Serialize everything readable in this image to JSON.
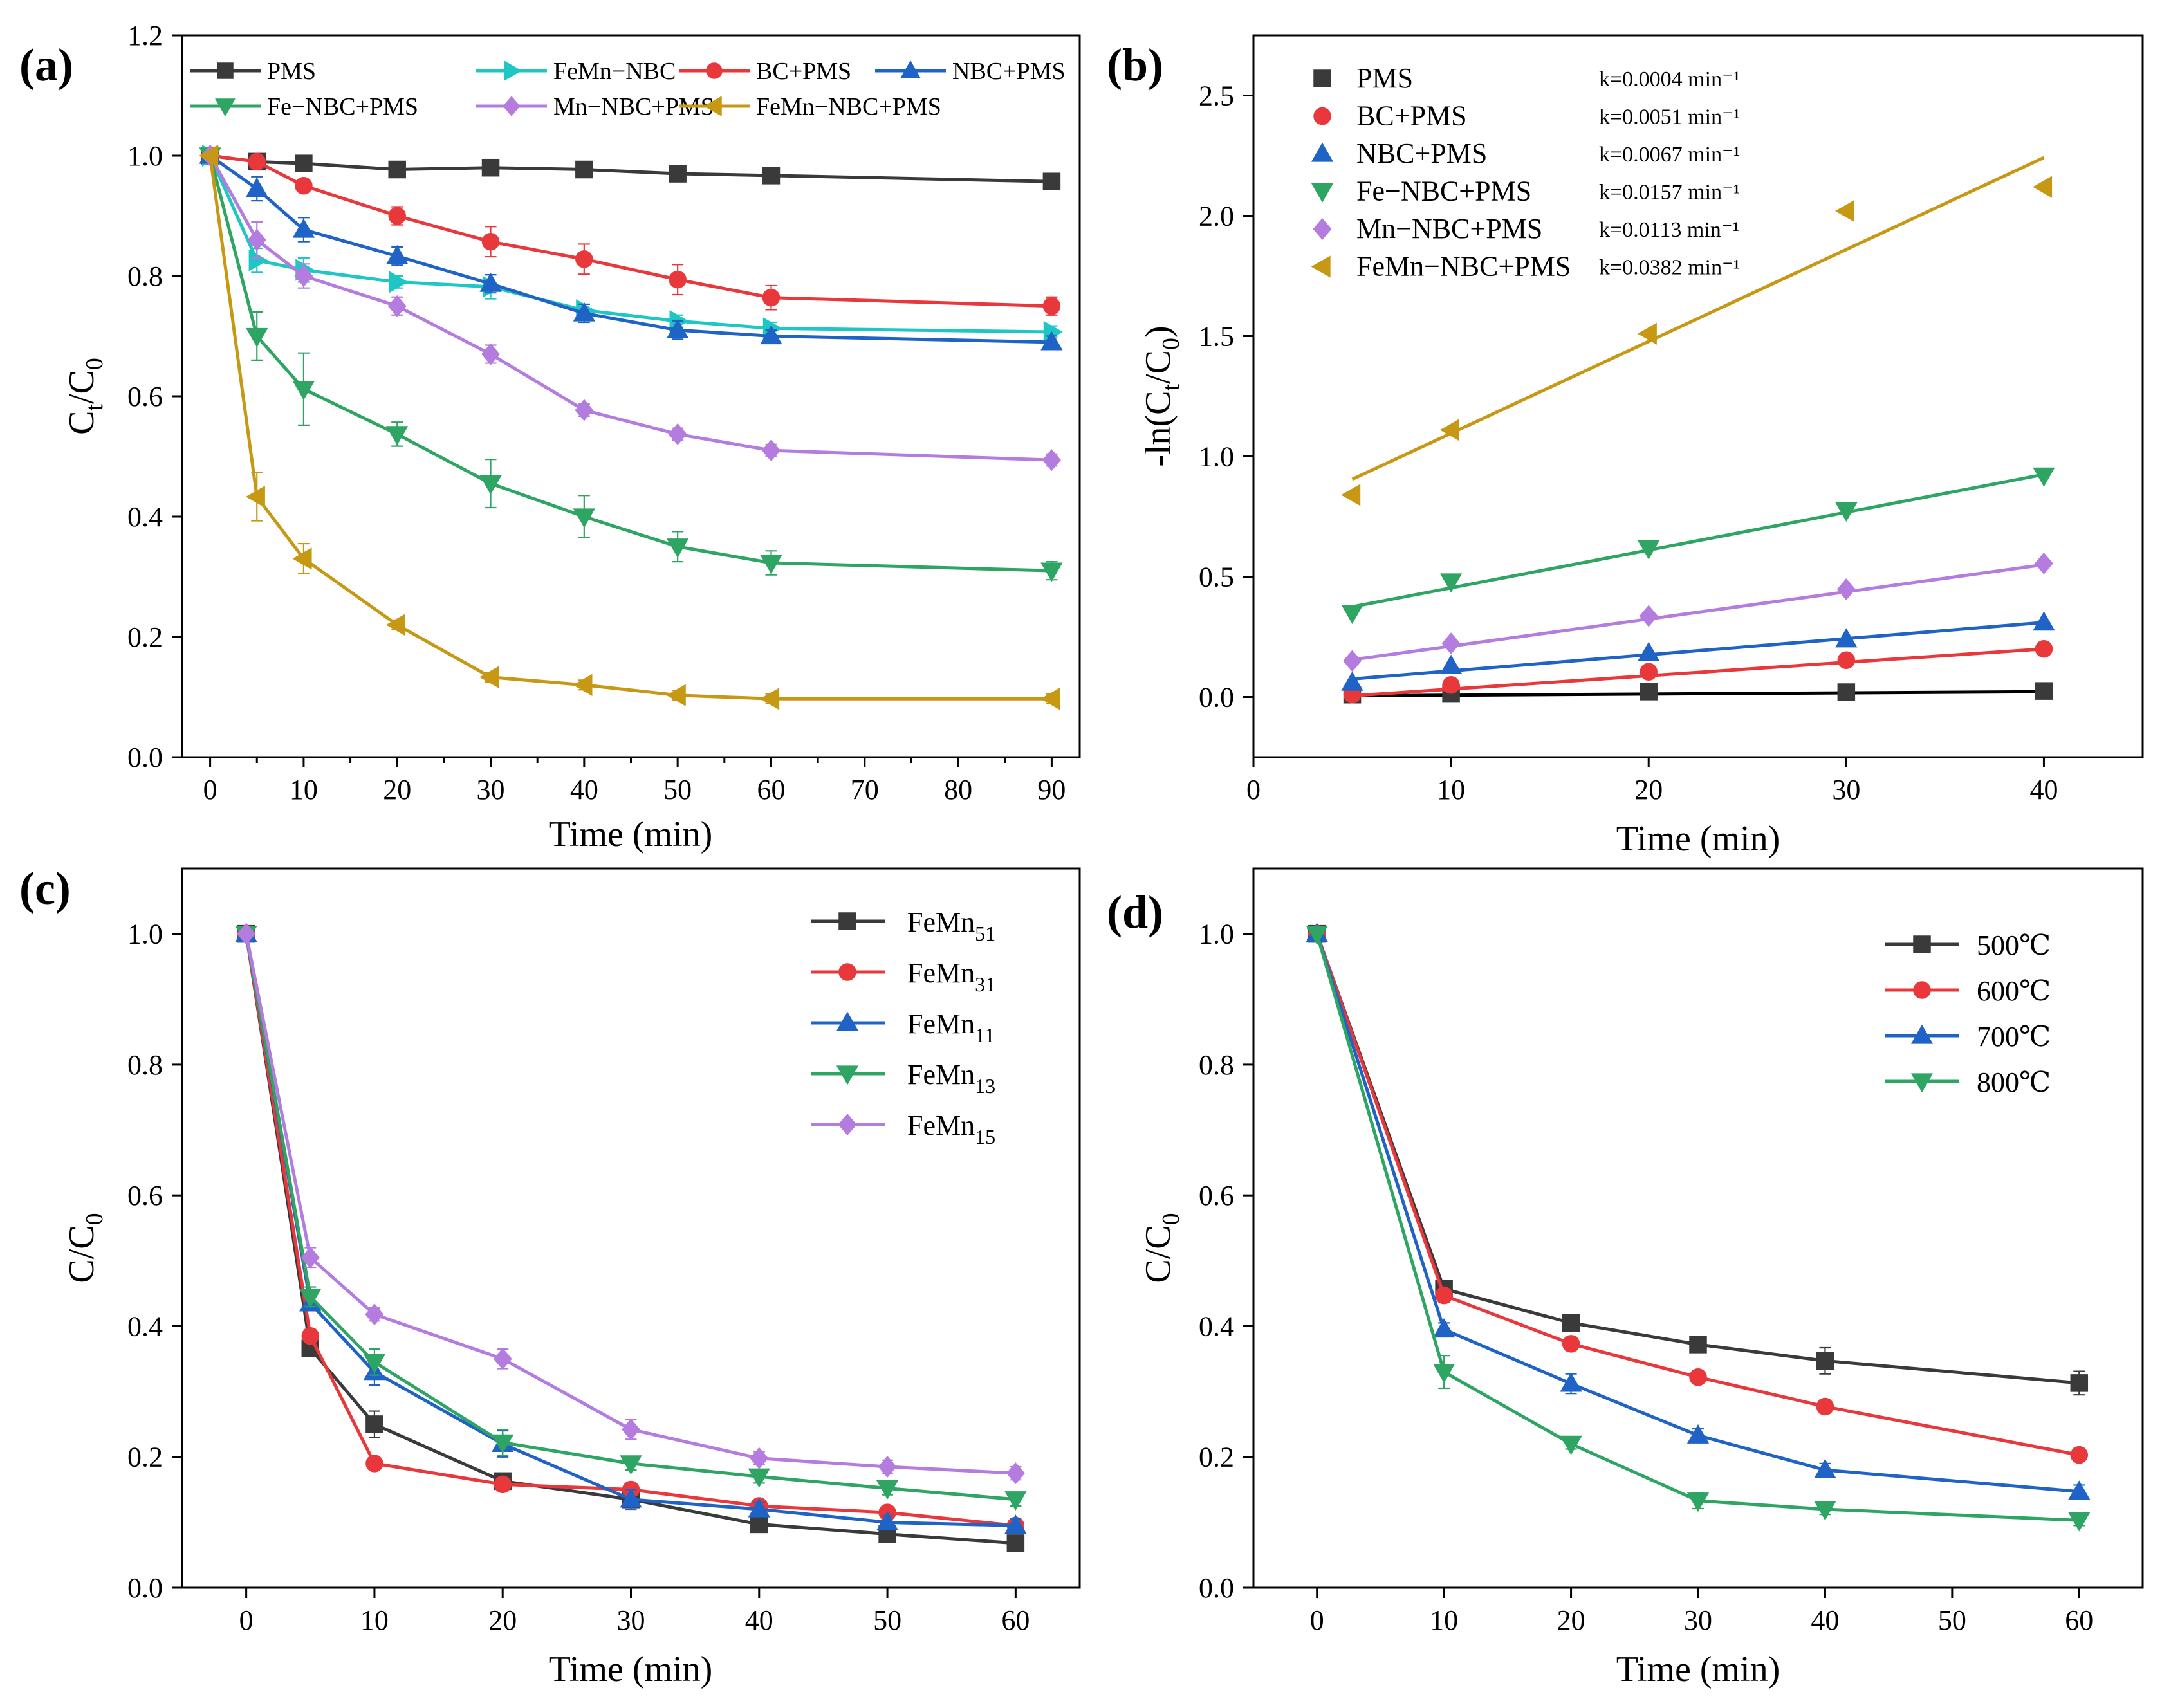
{
  "panels": {
    "a": {
      "label": "(a)",
      "xlabel": "Time (min)",
      "ylabel": [
        "C",
        "t",
        "/C",
        "0"
      ],
      "xticks": [
        "0",
        "10",
        "20",
        "30",
        "40",
        "50",
        "60",
        "70",
        "80",
        "90"
      ],
      "yticks": [
        "0.0",
        "0.2",
        "0.4",
        "0.6",
        "0.8",
        "1.0",
        "1.2"
      ]
    },
    "b": {
      "label": "(b)",
      "xlabel": "Time (min)",
      "ylabel": [
        "-ln(C",
        "t",
        "/C",
        "0",
        ")"
      ],
      "xticks": [
        "0",
        "10",
        "20",
        "30",
        "40"
      ],
      "yticks": [
        "0.0",
        "0.5",
        "1.0",
        "1.5",
        "2.0",
        "2.5"
      ]
    },
    "c": {
      "label": "(c)",
      "xlabel": "Time (min)",
      "ylabel": [
        "C/C",
        "0"
      ],
      "xticks": [
        "0",
        "10",
        "20",
        "30",
        "40",
        "50",
        "60"
      ],
      "yticks": [
        "0.0",
        "0.2",
        "0.4",
        "0.6",
        "0.8",
        "1.0"
      ]
    },
    "d": {
      "label": "(d)",
      "xlabel": "Time (min)",
      "ylabel": [
        "C/C",
        "0"
      ],
      "xticks": [
        "0",
        "10",
        "20",
        "30",
        "40",
        "50",
        "60"
      ],
      "yticks": [
        "0.0",
        "0.2",
        "0.4",
        "0.6",
        "0.8",
        "1.0"
      ]
    }
  },
  "chart_data": [
    {
      "panel": "a",
      "type": "line",
      "title": "",
      "xlabel": "Time (min)",
      "ylabel": "Ct/C0",
      "xlim": [
        -3,
        93
      ],
      "ylim": [
        0,
        1.2
      ],
      "legend_position": "top",
      "series": [
        {
          "name": "PMS",
          "color": "#3a3a3a",
          "marker": "square",
          "x": [
            0,
            5,
            10,
            20,
            30,
            40,
            50,
            60,
            90
          ],
          "y": [
            1.0,
            0.99,
            0.987,
            0.977,
            0.98,
            0.977,
            0.97,
            0.967,
            0.957
          ],
          "err": [
            0,
            0,
            0,
            0.005,
            0,
            0,
            0,
            0,
            0
          ]
        },
        {
          "name": "FeMn−NBC",
          "color": "#1fc7c4",
          "marker": "triangle-right",
          "x": [
            0,
            5,
            10,
            20,
            30,
            40,
            50,
            60,
            90
          ],
          "y": [
            1.0,
            0.826,
            0.81,
            0.79,
            0.782,
            0.743,
            0.725,
            0.713,
            0.707
          ],
          "err": [
            0,
            0.02,
            0.02,
            0.01,
            0.02,
            0.01,
            0.01,
            0.01,
            0.01
          ]
        },
        {
          "name": "BC+PMS",
          "color": "#e8383b",
          "marker": "circle",
          "x": [
            0,
            5,
            10,
            20,
            30,
            40,
            50,
            60,
            90
          ],
          "y": [
            1.0,
            0.99,
            0.95,
            0.9,
            0.857,
            0.828,
            0.794,
            0.764,
            0.75
          ],
          "err": [
            0,
            0.005,
            0.01,
            0.015,
            0.025,
            0.025,
            0.025,
            0.02,
            0.015
          ]
        },
        {
          "name": "NBC+PMS",
          "color": "#1f63c7",
          "marker": "triangle-up",
          "x": [
            0,
            5,
            10,
            20,
            30,
            40,
            50,
            60,
            90
          ],
          "y": [
            1.0,
            0.945,
            0.877,
            0.833,
            0.787,
            0.738,
            0.71,
            0.7,
            0.69
          ],
          "err": [
            0,
            0.02,
            0.02,
            0.015,
            0.015,
            0.015,
            0.015,
            0.01,
            0.01
          ]
        },
        {
          "name": "Fe−NBC+PMS",
          "color": "#2fa564",
          "marker": "triangle-down",
          "x": [
            0,
            5,
            10,
            20,
            30,
            40,
            50,
            60,
            90
          ],
          "y": [
            1.0,
            0.7,
            0.612,
            0.537,
            0.455,
            0.4,
            0.35,
            0.323,
            0.31
          ],
          "err": [
            0,
            0.04,
            0.06,
            0.02,
            0.04,
            0.035,
            0.025,
            0.02,
            0.015
          ]
        },
        {
          "name": "Mn−NBC+PMS",
          "color": "#b57ce0",
          "marker": "diamond",
          "x": [
            0,
            5,
            10,
            20,
            30,
            40,
            50,
            60,
            90
          ],
          "y": [
            1.0,
            0.86,
            0.8,
            0.75,
            0.67,
            0.577,
            0.537,
            0.51,
            0.494
          ],
          "err": [
            0,
            0.03,
            0.02,
            0.015,
            0.015,
            0.01,
            0.01,
            0.01,
            0.01
          ]
        },
        {
          "name": "FeMn−NBC+PMS",
          "color": "#c79813",
          "marker": "triangle-left",
          "x": [
            0,
            5,
            10,
            20,
            30,
            40,
            50,
            60,
            90
          ],
          "y": [
            1.0,
            0.433,
            0.33,
            0.22,
            0.133,
            0.12,
            0.103,
            0.097,
            0.097
          ],
          "err": [
            0,
            0.04,
            0.025,
            0.008,
            0.008,
            0.008,
            0.008,
            0.008,
            0.008
          ]
        }
      ]
    },
    {
      "panel": "b",
      "type": "scatter",
      "title": "",
      "xlabel": "Time (min)",
      "ylabel": "-ln(Ct/C0)",
      "xlim": [
        0,
        45
      ],
      "ylim": [
        -0.25,
        2.75
      ],
      "legend_position": "top-left",
      "series": [
        {
          "name": "PMS",
          "k": "k=0.0004 min⁻¹",
          "color": "#3a3a3a",
          "marker": "square",
          "x": [
            5,
            10,
            20,
            30,
            40
          ],
          "y": [
            0.01,
            0.013,
            0.023,
            0.02,
            0.025
          ],
          "fit": [
            0.005,
            0.022
          ]
        },
        {
          "name": "BC+PMS",
          "k": "k=0.0051 min⁻¹",
          "color": "#e8383b",
          "marker": "circle",
          "x": [
            5,
            10,
            20,
            30,
            40
          ],
          "y": [
            0.01,
            0.05,
            0.105,
            0.153,
            0.2
          ],
          "fit": [
            0.005,
            0.2
          ]
        },
        {
          "name": "NBC+PMS",
          "k": "k=0.0067 min⁻¹",
          "color": "#1f63c7",
          "marker": "triangle-up",
          "x": [
            5,
            10,
            20,
            30,
            40
          ],
          "y": [
            0.06,
            0.13,
            0.183,
            0.24,
            0.31
          ],
          "fit": [
            0.075,
            0.31
          ]
        },
        {
          "name": "Fe−NBC+PMS",
          "k": "k=0.0157 min⁻¹",
          "color": "#2fa564",
          "marker": "triangle-down",
          "x": [
            5,
            10,
            20,
            30,
            40
          ],
          "y": [
            0.35,
            0.48,
            0.618,
            0.775,
            0.92
          ],
          "fit": [
            0.375,
            0.925
          ]
        },
        {
          "name": "Mn−NBC+PMS",
          "k": "k=0.0113 min⁻¹",
          "color": "#b57ce0",
          "marker": "diamond",
          "x": [
            5,
            10,
            20,
            30,
            40
          ],
          "y": [
            0.15,
            0.223,
            0.337,
            0.448,
            0.555
          ],
          "fit": [
            0.155,
            0.55
          ]
        },
        {
          "name": "FeMn−NBC+PMS",
          "k": "k=0.0382 min⁻¹",
          "color": "#c79813",
          "marker": "triangle-left",
          "x": [
            5,
            10,
            20,
            30,
            40
          ],
          "y": [
            0.84,
            1.11,
            1.51,
            2.02,
            2.12
          ],
          "fit": [
            0.905,
            2.242
          ]
        }
      ]
    },
    {
      "panel": "c",
      "type": "line",
      "title": "",
      "xlabel": "Time (min)",
      "ylabel": "C/C0",
      "xlim": [
        -5,
        65
      ],
      "ylim": [
        0,
        1.1
      ],
      "legend_position": "top-right",
      "series": [
        {
          "name": "FeMn",
          "sub": "51",
          "color": "#3a3a3a",
          "marker": "square",
          "x": [
            0,
            5,
            10,
            20,
            30,
            40,
            50,
            60
          ],
          "y": [
            1.0,
            0.366,
            0.25,
            0.163,
            0.135,
            0.097,
            0.082,
            0.068
          ],
          "err": [
            0,
            0.01,
            0.02,
            0.01,
            0.01,
            0.008,
            0.008,
            0.008
          ]
        },
        {
          "name": "FeMn",
          "sub": "31",
          "color": "#e8383b",
          "marker": "circle",
          "x": [
            0,
            5,
            10,
            20,
            30,
            40,
            50,
            60
          ],
          "y": [
            1.0,
            0.385,
            0.19,
            0.158,
            0.15,
            0.125,
            0.115,
            0.095
          ],
          "err": [
            0,
            0.01,
            0.008,
            0.008,
            0.008,
            0.008,
            0.008,
            0.008
          ]
        },
        {
          "name": "FeMn",
          "sub": "11",
          "color": "#1f63c7",
          "marker": "triangle-up",
          "x": [
            0,
            5,
            10,
            20,
            30,
            40,
            50,
            60
          ],
          "y": [
            1.0,
            0.435,
            0.33,
            0.22,
            0.135,
            0.12,
            0.1,
            0.095
          ],
          "err": [
            0,
            0.01,
            0.02,
            0.02,
            0.015,
            0.01,
            0.01,
            0.01
          ]
        },
        {
          "name": "FeMn",
          "sub": "13",
          "color": "#2fa564",
          "marker": "triangle-down",
          "x": [
            0,
            5,
            10,
            20,
            30,
            40,
            50,
            60
          ],
          "y": [
            1.0,
            0.445,
            0.345,
            0.222,
            0.19,
            0.17,
            0.152,
            0.135
          ],
          "err": [
            0,
            0.015,
            0.02,
            0.02,
            0.01,
            0.01,
            0.01,
            0.01
          ]
        },
        {
          "name": "FeMn",
          "sub": "15",
          "color": "#b57ce0",
          "marker": "diamond",
          "x": [
            0,
            5,
            10,
            20,
            30,
            40,
            50,
            60
          ],
          "y": [
            1.0,
            0.505,
            0.418,
            0.35,
            0.242,
            0.198,
            0.185,
            0.175
          ],
          "err": [
            0,
            0.015,
            0.01,
            0.015,
            0.015,
            0.01,
            0.01,
            0.01
          ]
        }
      ]
    },
    {
      "panel": "d",
      "type": "line",
      "title": "",
      "xlabel": "Time (min)",
      "ylabel": "C/C0",
      "xlim": [
        -5,
        65
      ],
      "ylim": [
        0,
        1.1
      ],
      "legend_position": "top-right",
      "series": [
        {
          "name": "500℃",
          "color": "#3a3a3a",
          "marker": "square",
          "x": [
            0,
            10,
            20,
            30,
            40,
            60
          ],
          "y": [
            1.0,
            0.457,
            0.405,
            0.372,
            0.347,
            0.313
          ],
          "err": [
            0,
            0.01,
            0.01,
            0.01,
            0.02,
            0.018
          ]
        },
        {
          "name": "600℃",
          "color": "#e8383b",
          "marker": "circle",
          "x": [
            0,
            10,
            20,
            30,
            40,
            60
          ],
          "y": [
            1.0,
            0.447,
            0.373,
            0.322,
            0.277,
            0.203
          ],
          "err": [
            0,
            0.01,
            0.01,
            0.01,
            0.01,
            0.01
          ]
        },
        {
          "name": "700℃",
          "color": "#1f63c7",
          "marker": "triangle-up",
          "x": [
            0,
            10,
            20,
            30,
            40,
            60
          ],
          "y": [
            1.0,
            0.395,
            0.312,
            0.233,
            0.18,
            0.147
          ],
          "err": [
            0,
            0.01,
            0.015,
            0.01,
            0.01,
            0.01
          ]
        },
        {
          "name": "800℃",
          "color": "#2fa564",
          "marker": "triangle-down",
          "x": [
            0,
            10,
            20,
            30,
            40,
            60
          ],
          "y": [
            1.0,
            0.33,
            0.22,
            0.133,
            0.12,
            0.103
          ],
          "err": [
            0,
            0.025,
            0.008,
            0.012,
            0.008,
            0.008
          ]
        }
      ]
    }
  ]
}
